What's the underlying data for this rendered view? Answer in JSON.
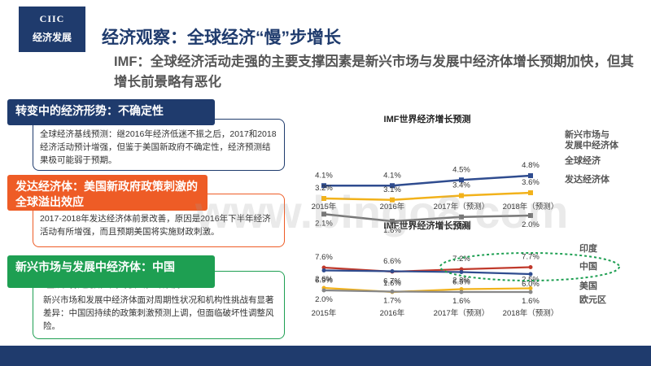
{
  "logo": {
    "line1": "CIIC",
    "line2": "经济发展"
  },
  "title": "经济观察：全球经济“慢”步增长",
  "subtitle": "IMF：全球经济活动走强的主要支撑因素是新兴市场与发展中经济体增长预期加快，但其增长前景略有恶化",
  "sections": [
    {
      "heading": "转变中的经济形势：不确定性",
      "body": "全球经济基线预测：继2016年经济低迷不振之后，2017和2018经济活动预计增强，但鉴于美国新政府不确定性，经济预测结果极可能弱于预期。"
    },
    {
      "heading": "发达经济体：美国新政府政策刺激的全球溢出效应",
      "body": "2017-2018年发达经济体前景改善，原因是2016年下半年经济活动有所增强，而且预期美国将实施财政刺激。"
    },
    {
      "heading": "新兴市场与发展中经济体：中国",
      "highlight": "经济增速极具下行风险减缓",
      "highlight_line1": "经济",
      "highlight_line2": "增速极具下减缓风险",
      "body": "新兴市场和发展中经济体面对周期性状况和机构性挑战有显著差异：中国因持续的政策刺激预测上调，但面临破坏性调整风险。"
    }
  ],
  "chart_data": [
    {
      "type": "line",
      "title": "IMF世界经济增长预测",
      "categories": [
        "2015年",
        "2016年",
        "2017年（预测）",
        "2018年（预测）"
      ],
      "series": [
        {
          "name": "新兴市场与发展中经济体",
          "values": [
            4.1,
            4.1,
            4.5,
            4.8
          ],
          "labels": [
            "4.1%",
            "4.1%",
            "4.5%",
            "4.8%"
          ],
          "color": "#2f4c8f"
        },
        {
          "name": "全球经济",
          "values": [
            3.2,
            3.1,
            3.4,
            3.6
          ],
          "labels": [
            "3.2%",
            "3.1%",
            "3.4%",
            "3.6%"
          ],
          "color": "#f2b21b"
        },
        {
          "name": "发达经济体",
          "values": [
            2.1,
            1.6,
            1.9,
            2.0
          ],
          "labels": [
            "2.1%",
            "1.6%",
            "1.9%",
            "2.0%"
          ],
          "color": "#777777"
        }
      ],
      "legend_lines": [
        [
          "新兴市场与",
          "发展中经济体"
        ],
        [
          "全球经济"
        ],
        [
          "发达经济体"
        ]
      ]
    },
    {
      "type": "line",
      "title": "IMF世界经济增长预测",
      "categories": [
        "2015年",
        "2016年",
        "2017年（预测）",
        "2018年（预测）"
      ],
      "series": [
        {
          "name": "印度",
          "values": [
            7.6,
            6.6,
            7.2,
            7.7
          ],
          "labels": [
            "7.6%",
            "6.6%",
            "7.2%",
            "7.7%"
          ],
          "color": "#c0392b"
        },
        {
          "name": "中国",
          "values": [
            6.9,
            6.7,
            6.5,
            6.0
          ],
          "labels": [
            "6.9%",
            "6.7%",
            "6.5%",
            "6.0%"
          ],
          "color": "#2f4c8f"
        },
        {
          "name": "美国",
          "values": [
            2.6,
            1.6,
            2.3,
            2.5
          ],
          "labels": [
            "2.6%",
            "1.6%",
            "2.3%",
            "2.5%"
          ],
          "color": "#f2b21b"
        },
        {
          "name": "欧元区",
          "values": [
            2.0,
            1.7,
            1.6,
            1.6
          ],
          "labels": [
            "2.0%",
            "1.7%",
            "1.6%",
            "1.6%"
          ],
          "color": "#888888"
        }
      ]
    }
  ],
  "watermark": "www.bingo8.com"
}
